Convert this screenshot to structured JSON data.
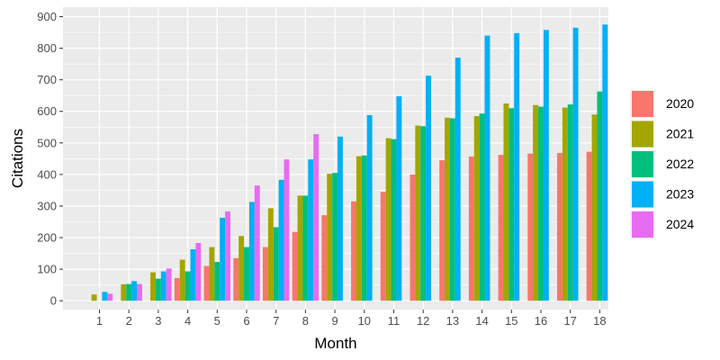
{
  "chart_data": {
    "type": "bar",
    "xlabel": "Month",
    "ylabel": "Citations",
    "ylim": [
      -28,
      930
    ],
    "yticks": [
      0,
      100,
      200,
      300,
      400,
      500,
      600,
      700,
      800,
      900
    ],
    "categories": [
      "1",
      "2",
      "3",
      "4",
      "5",
      "6",
      "7",
      "8",
      "9",
      "10",
      "11",
      "12",
      "13",
      "14",
      "15",
      "16",
      "17",
      "18"
    ],
    "legend_position": "right",
    "grid": true,
    "panel_background": "#ebebeb",
    "series": [
      {
        "name": "2020",
        "color": "#f8766d",
        "values": [
          0,
          0,
          0,
          72,
          110,
          135,
          170,
          218,
          271,
          315,
          345,
          400,
          445,
          457,
          462,
          466,
          468,
          472
        ]
      },
      {
        "name": "2021",
        "color": "#a3a500",
        "values": [
          20,
          52,
          90,
          130,
          170,
          205,
          293,
          333,
          402,
          458,
          515,
          555,
          580,
          585,
          625,
          620,
          612,
          590
        ]
      },
      {
        "name": "2022",
        "color": "#00bf7d",
        "values": [
          0,
          53,
          70,
          93,
          123,
          170,
          233,
          333,
          405,
          460,
          512,
          553,
          578,
          593,
          610,
          615,
          622,
          663
        ]
      },
      {
        "name": "2023",
        "color": "#00b0f6",
        "values": [
          28,
          62,
          93,
          163,
          263,
          313,
          383,
          448,
          520,
          588,
          648,
          713,
          770,
          840,
          848,
          858,
          865,
          875
        ]
      },
      {
        "name": "2024",
        "color": "#e76bf3",
        "values": [
          22,
          53,
          102,
          183,
          283,
          365,
          448,
          528,
          null,
          null,
          null,
          null,
          null,
          null,
          null,
          null,
          null,
          null
        ]
      }
    ]
  }
}
